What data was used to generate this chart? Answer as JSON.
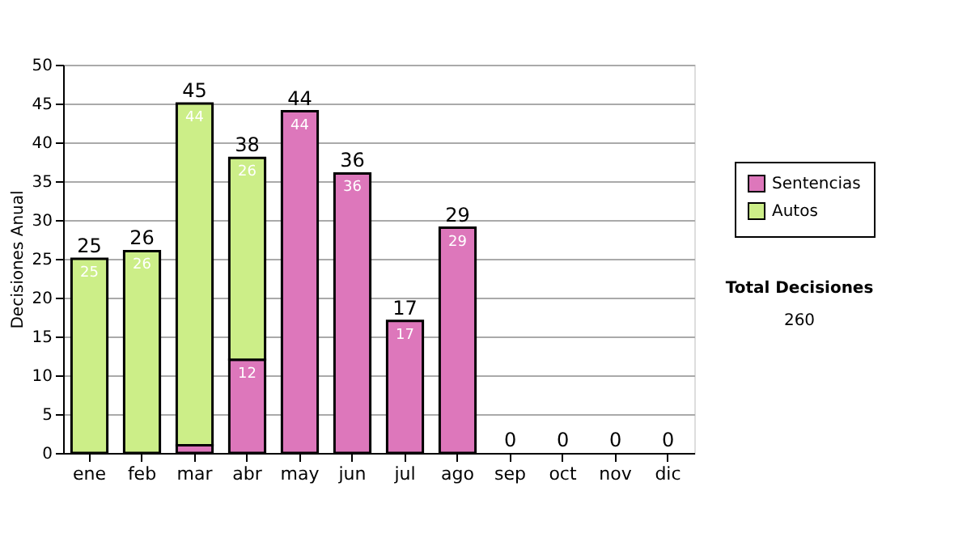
{
  "chart_data": {
    "type": "bar",
    "stacked": true,
    "ylabel": "Decisiones Anual",
    "categories": [
      "ene",
      "feb",
      "mar",
      "abr",
      "may",
      "jun",
      "jul",
      "ago",
      "sep",
      "oct",
      "nov",
      "dic"
    ],
    "series": [
      {
        "name": "Sentencias",
        "color": "#dd77bb",
        "values": [
          0,
          0,
          1,
          12,
          44,
          36,
          17,
          29,
          0,
          0,
          0,
          0
        ],
        "value_labels": [
          null,
          null,
          null,
          "12",
          "44",
          "36",
          "17",
          "29",
          null,
          null,
          null,
          null
        ]
      },
      {
        "name": "Autos",
        "color": "#ccee88",
        "values": [
          25,
          26,
          44,
          26,
          0,
          0,
          0,
          0,
          0,
          0,
          0,
          0
        ],
        "value_labels": [
          "25",
          "26",
          "44",
          "26",
          null,
          null,
          null,
          null,
          null,
          null,
          null,
          null
        ]
      }
    ],
    "totals": [
      "25",
      "26",
      "45",
      "38",
      "44",
      "36",
      "17",
      "29",
      "0",
      "0",
      "0",
      "0"
    ],
    "ylim": [
      0,
      50
    ],
    "yticks": [
      0,
      5,
      10,
      15,
      20,
      25,
      30,
      35,
      40,
      45,
      50
    ],
    "grid": "y",
    "legend": "right",
    "annotations": [
      "Total Decisiones",
      "260"
    ]
  }
}
